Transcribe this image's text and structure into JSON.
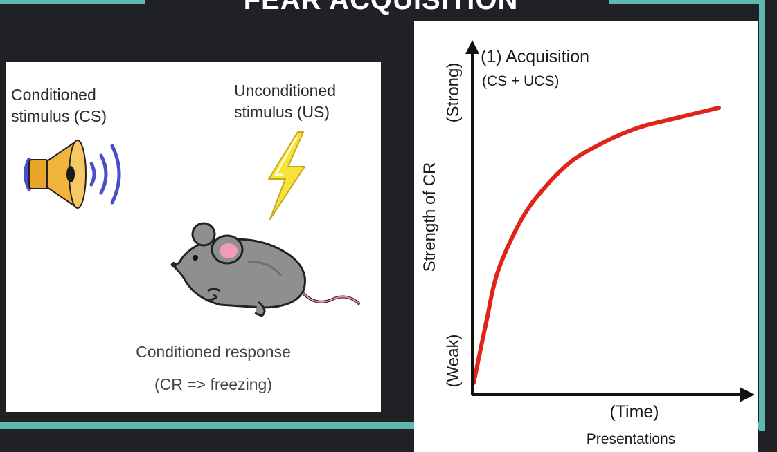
{
  "title": "FEAR ACQUISITION",
  "left_panel": {
    "cs_label": [
      "Conditioned",
      "stimulus (CS)"
    ],
    "us_label": [
      "Unconditioned",
      "stimulus (US)"
    ],
    "cr_label": [
      "Conditioned response",
      "(CR => freezing)"
    ]
  },
  "colors": {
    "background": "#1f2124",
    "frame": "#5fb8b0",
    "curve": "#e0241c",
    "speaker_body": "#f2b53c",
    "sound_waves": "#4b4ecb",
    "bolt": "#f7e23a",
    "mouse": "#8f8f8f"
  },
  "chart_data": {
    "type": "line",
    "annotation": "(1)  Acquisition",
    "annotation_sub": "(CS + UCS)",
    "xlabel": "(Time)",
    "xlabel_sub": "Presentations",
    "ylabel": "Strength of CR",
    "y_top_label": "(Strong)",
    "y_bottom_label": "(Weak)",
    "x": [
      0,
      0.05,
      0.1,
      0.2,
      0.3,
      0.4,
      0.5,
      0.6,
      0.7,
      0.8,
      0.9,
      1.0
    ],
    "y": [
      0,
      0.2,
      0.38,
      0.56,
      0.67,
      0.75,
      0.8,
      0.84,
      0.87,
      0.89,
      0.91,
      0.93
    ],
    "xlim": [
      0,
      1
    ],
    "ylim": [
      0,
      1
    ],
    "grid": false
  }
}
